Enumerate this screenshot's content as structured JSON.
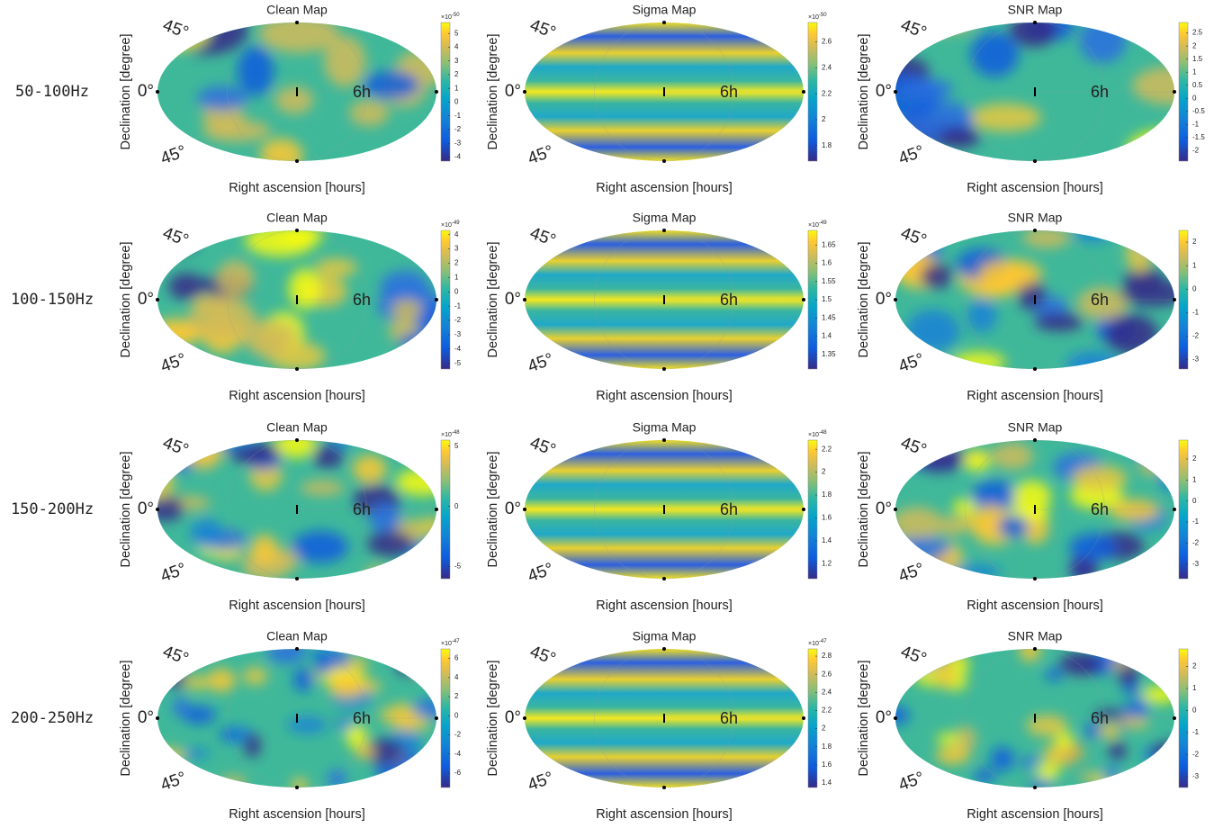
{
  "row_labels": [
    "50-100Hz",
    "100-150Hz",
    "150-200Hz",
    "200-250Hz"
  ],
  "chart_data": [
    {
      "type": "skymap",
      "title": "Clean Map",
      "xlabel": "Right ascension [hours]",
      "ylabel": "Declination [degree]",
      "lat_labels": [
        "45°",
        "0°",
        "45°"
      ],
      "ra_label": "6h",
      "clim": [
        -4.3,
        5.8
      ],
      "cticks": [
        -4,
        -3,
        -2,
        -1,
        0,
        1,
        2,
        3,
        4,
        5
      ],
      "cscale": {
        "base": "×10",
        "power": "-50"
      }
    },
    {
      "type": "skymap-bands",
      "title": "Sigma Map",
      "xlabel": "Right ascension [hours]",
      "ylabel": "Declination [degree]",
      "lat_labels": [
        "45°",
        "0°",
        "45°"
      ],
      "ra_label": "6h",
      "clim": [
        1.68,
        2.75
      ],
      "cticks": [
        1.8,
        2,
        2.2,
        2.4,
        2.6
      ],
      "cscale": {
        "base": "×10",
        "power": "-50"
      }
    },
    {
      "type": "skymap",
      "title": "SNR Map",
      "xlabel": "Right ascension [hours]",
      "ylabel": "Declination [degree]",
      "lat_labels": [
        "45°",
        "0°",
        "45°"
      ],
      "ra_label": "6h",
      "clim": [
        -2.4,
        2.9
      ],
      "cticks": [
        -2,
        -1.5,
        -1,
        -0.5,
        0,
        0.5,
        1,
        1.5,
        2,
        2.5
      ]
    },
    {
      "type": "skymap",
      "title": "Clean Map",
      "xlabel": "Right ascension [hours]",
      "ylabel": "Declination [degree]",
      "lat_labels": [
        "45°",
        "0°",
        "45°"
      ],
      "ra_label": "6h",
      "clim": [
        -5.4,
        4.3
      ],
      "cticks": [
        -5,
        -4,
        -3,
        -2,
        -1,
        0,
        1,
        2,
        3,
        4
      ],
      "cscale": {
        "base": "×10",
        "power": "-49"
      }
    },
    {
      "type": "skymap-bands",
      "title": "Sigma Map",
      "xlabel": "Right ascension [hours]",
      "ylabel": "Declination [degree]",
      "lat_labels": [
        "45°",
        "0°",
        "45°"
      ],
      "ra_label": "6h",
      "clim": [
        1.31,
        1.69
      ],
      "cticks": [
        1.35,
        1.4,
        1.45,
        1.5,
        1.55,
        1.6,
        1.65
      ],
      "cscale": {
        "base": "×10",
        "power": "-49"
      }
    },
    {
      "type": "skymap",
      "title": "SNR Map",
      "xlabel": "Right ascension [hours]",
      "ylabel": "Declination [degree]",
      "lat_labels": [
        "45°",
        "0°",
        "45°"
      ],
      "ra_label": "6h",
      "clim": [
        -3.4,
        2.5
      ],
      "cticks": [
        -3,
        -2,
        -1,
        0,
        1,
        2
      ]
    },
    {
      "type": "skymap",
      "title": "Clean Map",
      "xlabel": "Right ascension [hours]",
      "ylabel": "Declination [degree]",
      "lat_labels": [
        "45°",
        "0°",
        "45°"
      ],
      "ra_label": "6h",
      "clim": [
        -6,
        5.5
      ],
      "cticks": [
        -5,
        0,
        5
      ],
      "cscale": {
        "base": "×10",
        "power": "-48"
      }
    },
    {
      "type": "skymap-bands",
      "title": "Sigma Map",
      "xlabel": "Right ascension [hours]",
      "ylabel": "Declination [degree]",
      "lat_labels": [
        "45°",
        "0°",
        "45°"
      ],
      "ra_label": "6h",
      "clim": [
        1.07,
        2.28
      ],
      "cticks": [
        1.2,
        1.4,
        1.6,
        1.8,
        2,
        2.2
      ],
      "cscale": {
        "base": "×10",
        "power": "-48"
      }
    },
    {
      "type": "skymap",
      "title": "SNR Map",
      "xlabel": "Right ascension [hours]",
      "ylabel": "Declination [degree]",
      "lat_labels": [
        "45°",
        "0°",
        "45°"
      ],
      "ra_label": "6h",
      "clim": [
        -3.7,
        2.9
      ],
      "cticks": [
        -3,
        -2,
        -1,
        0,
        1,
        2
      ]
    },
    {
      "type": "skymap",
      "title": "Clean Map",
      "xlabel": "Right ascension [hours]",
      "ylabel": "Declination [degree]",
      "lat_labels": [
        "45°",
        "0°",
        "45°"
      ],
      "ra_label": "6h",
      "clim": [
        -7.5,
        7
      ],
      "cticks": [
        -6,
        -4,
        -2,
        0,
        2,
        4,
        6
      ],
      "cscale": {
        "base": "×10",
        "power": "-47"
      }
    },
    {
      "type": "skymap-bands",
      "title": "Sigma Map",
      "xlabel": "Right ascension [hours]",
      "ylabel": "Declination [degree]",
      "lat_labels": [
        "45°",
        "0°",
        "45°"
      ],
      "ra_label": "6h",
      "clim": [
        1.35,
        2.88
      ],
      "cticks": [
        1.4,
        1.6,
        1.8,
        2,
        2.2,
        2.4,
        2.6,
        2.8
      ],
      "cscale": {
        "base": "×10",
        "power": "-47"
      }
    },
    {
      "type": "skymap",
      "title": "SNR Map",
      "xlabel": "Right ascension [hours]",
      "ylabel": "Declination [degree]",
      "lat_labels": [
        "45°",
        "0°",
        "45°"
      ],
      "ra_label": "6h",
      "clim": [
        -3.5,
        2.8
      ],
      "cticks": [
        -3,
        -2,
        -1,
        0,
        1,
        2
      ]
    }
  ]
}
